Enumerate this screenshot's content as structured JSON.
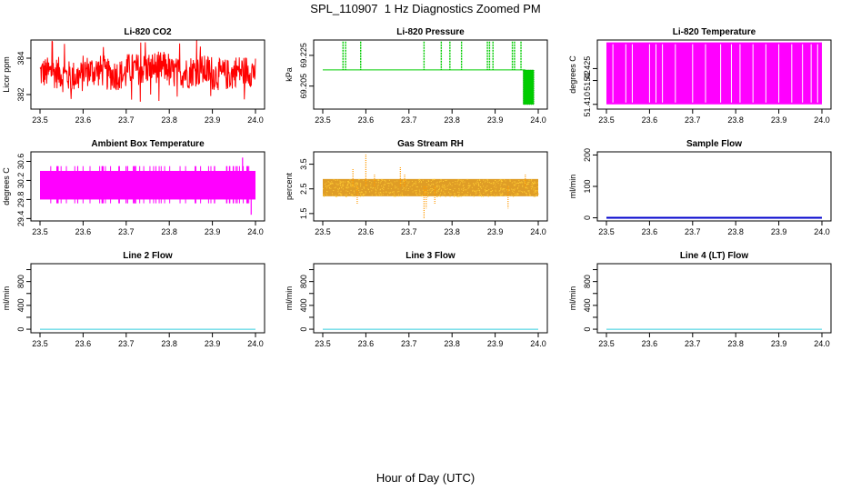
{
  "figure": {
    "title": "SPL_110907  1 Hz Diagnostics Zoomed PM",
    "xlabel": "Hour of Day (UTC)"
  },
  "chart_data": [
    {
      "type": "line",
      "title": "Li-820 CO2",
      "ylabel": "Licor ppm",
      "color": "#ff0000",
      "xlim": [
        23.5,
        24.0
      ],
      "ylim": [
        381.2,
        385.0
      ],
      "xticks": [
        "23.5",
        "23.6",
        "23.7",
        "23.8",
        "23.9",
        "24.0"
      ],
      "yticks": [
        382,
        384
      ],
      "ytick_labels": [
        "382",
        "384"
      ],
      "series": [
        {
          "name": "CO2",
          "x": [
            23.5,
            23.55,
            23.6,
            23.65,
            23.7,
            23.75,
            23.8,
            23.85,
            23.9,
            23.95,
            24.0
          ],
          "values": [
            383.2,
            383.0,
            383.3,
            383.1,
            383.4,
            383.5,
            383.2,
            383.3,
            383.1,
            383.3,
            383.2
          ]
        }
      ],
      "noise": {
        "kind": "fill",
        "upper": 384.0,
        "lower": 382.4,
        "spikes_high": 385.0,
        "spikes_low": 381.6
      }
    },
    {
      "type": "line",
      "title": "Li-820 Pressure",
      "ylabel": "kPa",
      "color": "#00cc00",
      "xlim": [
        23.5,
        24.0
      ],
      "ylim": [
        69.19,
        69.235
      ],
      "xticks": [
        "23.5",
        "23.6",
        "23.7",
        "23.8",
        "23.9",
        "24.0"
      ],
      "yticks": [
        69.205,
        69.225
      ],
      "ytick_labels": [
        "69.205",
        "69.225"
      ],
      "series": [
        {
          "name": "Pressure",
          "x": [
            23.5,
            23.97,
            23.97,
            24.0
          ],
          "values": [
            69.2155,
            69.2155,
            69.2155,
            69.2155
          ]
        }
      ],
      "spike_times": [
        23.547,
        23.553,
        23.588,
        23.735,
        23.775,
        23.795,
        23.822,
        23.882,
        23.887,
        23.895,
        23.94,
        23.945,
        23.96
      ],
      "spike_high": 69.234,
      "spike_low": 69.2155,
      "block": {
        "x0": 23.965,
        "x1": 23.99,
        "y0": 69.193,
        "y1": 69.2155
      }
    },
    {
      "type": "line",
      "title": "Li-820 Temperature",
      "ylabel": "degrees C",
      "color": "#ff00ff",
      "xlim": [
        23.5,
        24.0
      ],
      "ylim": [
        51.408,
        51.437
      ],
      "xticks": [
        "23.5",
        "23.6",
        "23.7",
        "23.8",
        "23.9",
        "24.0"
      ],
      "yticks": [
        51.41,
        51.42,
        51.425
      ],
      "ytick_labels": [
        "51.410",
        "51.42",
        "51.425"
      ],
      "levels": {
        "high": 51.436,
        "low": 51.41
      },
      "gap_times": [
        23.515,
        23.545,
        23.56,
        23.6,
        23.615,
        23.63,
        23.66,
        23.7,
        23.73,
        23.765,
        23.79,
        23.81,
        23.84,
        23.87,
        23.9,
        23.93,
        23.955,
        23.975,
        23.99
      ]
    },
    {
      "type": "line",
      "title": "Ambient Box Temperature",
      "ylabel": "degrees C",
      "color": "#ff00ff",
      "xlim": [
        23.5,
        24.0
      ],
      "ylim": [
        29.35,
        30.8
      ],
      "xticks": [
        "23.5",
        "23.6",
        "23.7",
        "23.8",
        "23.9",
        "24.0"
      ],
      "yticks": [
        29.4,
        29.8,
        30.2,
        30.6
      ],
      "ytick_labels": [
        "29.4",
        "29.8",
        "30.2",
        "30.6"
      ],
      "levels": {
        "high": 30.4,
        "low": 29.8,
        "spike": 30.68,
        "dip": 29.48
      }
    },
    {
      "type": "scatter",
      "title": "Gas Stream RH",
      "ylabel": "percent",
      "color": "#ff9900",
      "xlim": [
        23.5,
        24.0
      ],
      "ylim": [
        1.2,
        4.0
      ],
      "xticks": [
        "23.5",
        "23.6",
        "23.7",
        "23.8",
        "23.9",
        "24.0"
      ],
      "yticks": [
        1.5,
        2.5,
        3.5
      ],
      "ytick_labels": [
        "1.5",
        "2.5",
        "3.5"
      ],
      "band": {
        "center": 2.6,
        "upper": 2.9,
        "lower": 2.2
      },
      "outliers": [
        [
          23.6,
          3.9
        ],
        [
          23.57,
          3.3
        ],
        [
          23.62,
          3.1
        ],
        [
          23.68,
          3.4
        ],
        [
          23.69,
          3.1
        ],
        [
          23.735,
          1.3
        ],
        [
          23.74,
          1.7
        ],
        [
          23.93,
          1.7
        ],
        [
          23.58,
          1.9
        ],
        [
          23.76,
          1.9
        ],
        [
          23.97,
          3.1
        ]
      ]
    },
    {
      "type": "line",
      "title": "Sample Flow",
      "ylabel": "ml/min",
      "color": "#0000cc",
      "xlim": [
        23.5,
        24.0
      ],
      "ylim": [
        -10,
        210
      ],
      "xticks": [
        "23.5",
        "23.6",
        "23.7",
        "23.8",
        "23.9",
        "24.0"
      ],
      "yticks": [
        0,
        100,
        200
      ],
      "ytick_labels": [
        "0",
        "100",
        "200"
      ],
      "series": [
        {
          "name": "Sample Flow",
          "x": [
            23.5,
            24.0
          ],
          "values": [
            0,
            0
          ]
        }
      ]
    },
    {
      "type": "line",
      "title": "Line 2 Flow",
      "ylabel": "ml/min",
      "color": "#33ccdd",
      "xlim": [
        23.5,
        24.0
      ],
      "ylim": [
        -60,
        1100
      ],
      "xticks": [
        "23.5",
        "23.6",
        "23.7",
        "23.8",
        "23.9",
        "24.0"
      ],
      "yticks": [
        0,
        200,
        400,
        600,
        800,
        1000
      ],
      "ytick_labels": [
        "0",
        "",
        "400",
        "",
        "800",
        ""
      ],
      "series": [
        {
          "name": "Line 2 Flow",
          "x": [
            23.5,
            24.0
          ],
          "values": [
            0,
            0
          ]
        }
      ]
    },
    {
      "type": "line",
      "title": "Line 3 Flow",
      "ylabel": "ml/min",
      "color": "#33ccdd",
      "xlim": [
        23.5,
        24.0
      ],
      "ylim": [
        -60,
        1100
      ],
      "xticks": [
        "23.5",
        "23.6",
        "23.7",
        "23.8",
        "23.9",
        "24.0"
      ],
      "yticks": [
        0,
        200,
        400,
        600,
        800,
        1000
      ],
      "ytick_labels": [
        "0",
        "",
        "400",
        "",
        "800",
        ""
      ],
      "series": [
        {
          "name": "Line 3 Flow",
          "x": [
            23.5,
            24.0
          ],
          "values": [
            0,
            0
          ]
        }
      ]
    },
    {
      "type": "line",
      "title": "Line 4 (LT) Flow",
      "ylabel": "ml/min",
      "color": "#33ccdd",
      "xlim": [
        23.5,
        24.0
      ],
      "ylim": [
        -60,
        1100
      ],
      "xticks": [
        "23.5",
        "23.6",
        "23.7",
        "23.8",
        "23.9",
        "24.0"
      ],
      "yticks": [
        0,
        200,
        400,
        600,
        800,
        1000
      ],
      "ytick_labels": [
        "0",
        "",
        "400",
        "",
        "800",
        ""
      ],
      "series": [
        {
          "name": "Line 4 (LT) Flow",
          "x": [
            23.5,
            24.0
          ],
          "values": [
            0,
            0
          ]
        }
      ]
    }
  ]
}
